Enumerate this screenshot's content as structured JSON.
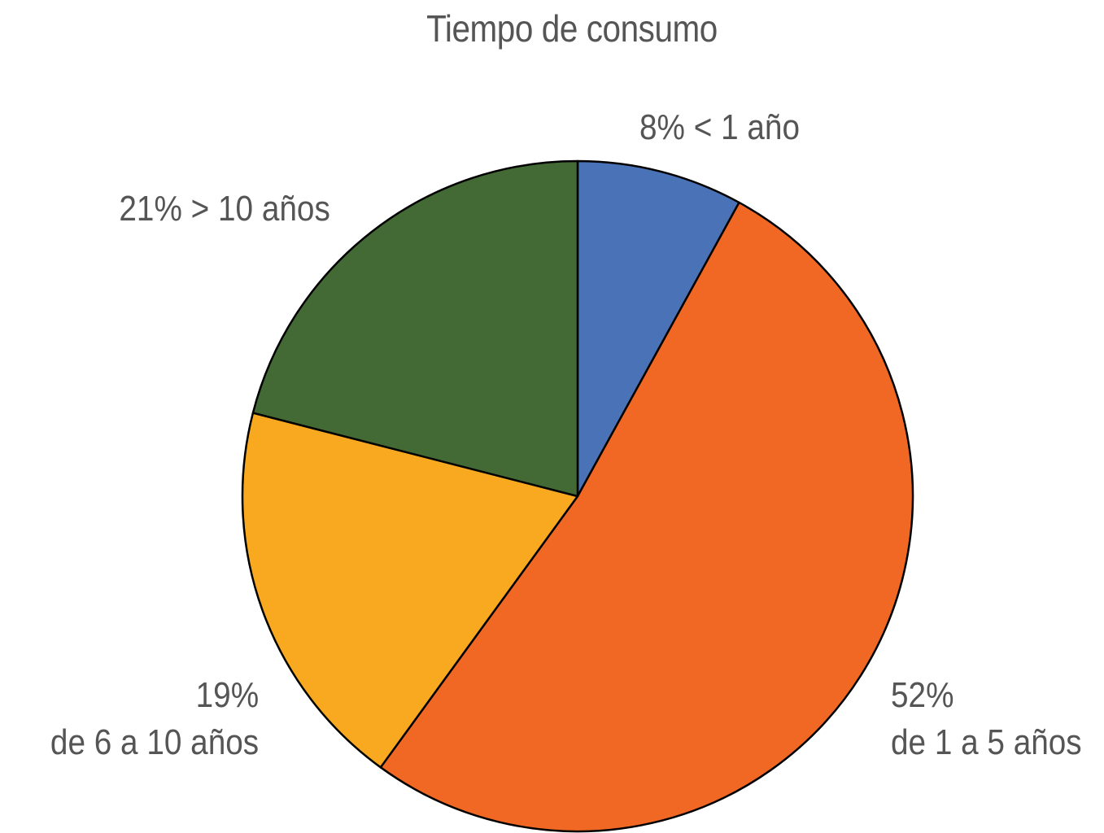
{
  "chart_data": {
    "type": "pie",
    "title": "Tiempo de consumo",
    "slices": [
      {
        "label": "< 1 año",
        "value": 8,
        "pct_text": "8%",
        "text": "< 1 año",
        "color": "#4a72b6"
      },
      {
        "label": "de 1 a 5 años",
        "value": 52,
        "pct_text": "52%",
        "text": "de 1 a 5 años",
        "color": "#f06824"
      },
      {
        "label": "de 6 a 10 años",
        "value": 19,
        "pct_text": "19%",
        "text": "de 6 a 10 años",
        "color": "#f9a91f"
      },
      {
        "label": "> 10 años",
        "value": 21,
        "pct_text": "21%",
        "text": "> 10 años",
        "color": "#436a35"
      }
    ],
    "start_angle": "12 o'clock",
    "direction": "clockwise",
    "stroke_color": "#000000"
  }
}
